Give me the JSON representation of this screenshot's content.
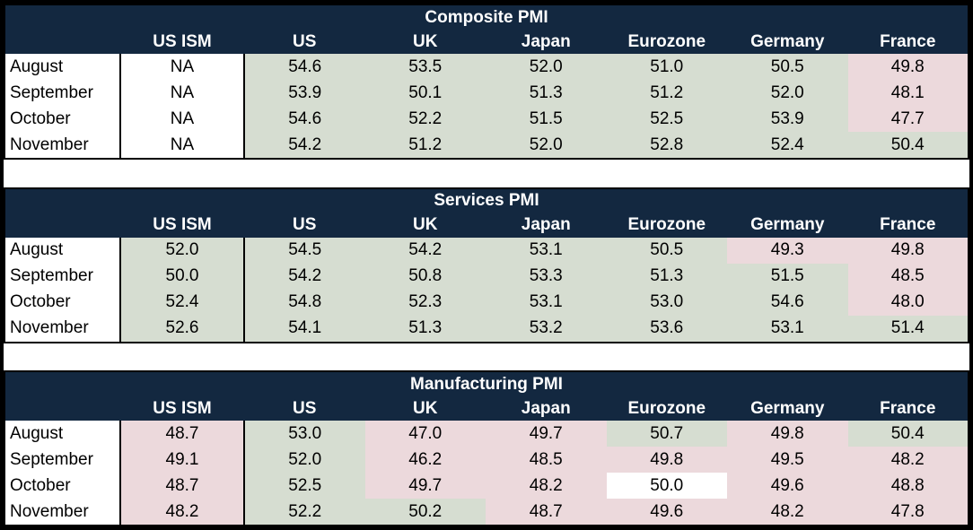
{
  "colors": {
    "header_bg": "#132840",
    "header_text": "#ffffff",
    "expansion_green": "#D6DDD1",
    "contraction_pink": "#ECD9DC",
    "neutral_white": "#ffffff",
    "data_text": "#000000",
    "frame": "#000000"
  },
  "chart_data": [
    {
      "type": "table",
      "title": "Composite PMI",
      "columns": [
        "",
        "US ISM",
        "US",
        "UK",
        "Japan",
        "Eurozone",
        "Germany",
        "France"
      ],
      "rows": [
        [
          "August",
          "NA",
          "54.6",
          "53.5",
          "52.0",
          "51.0",
          "50.5",
          "49.8"
        ],
        [
          "September",
          "NA",
          "53.9",
          "50.1",
          "51.3",
          "51.2",
          "52.0",
          "48.1"
        ],
        [
          "October",
          "NA",
          "54.6",
          "52.2",
          "51.5",
          "52.5",
          "53.9",
          "47.7"
        ],
        [
          "November",
          "NA",
          "54.2",
          "51.2",
          "52.0",
          "52.8",
          "52.4",
          "50.4"
        ]
      ],
      "cell_colors": [
        [
          "white",
          "green",
          "green",
          "green",
          "green",
          "green",
          "pink"
        ],
        [
          "white",
          "green",
          "green",
          "green",
          "green",
          "green",
          "pink"
        ],
        [
          "white",
          "green",
          "green",
          "green",
          "green",
          "green",
          "pink"
        ],
        [
          "white",
          "green",
          "green",
          "green",
          "green",
          "green",
          "green"
        ]
      ]
    },
    {
      "type": "table",
      "title": "Services PMI",
      "columns": [
        "",
        "US ISM",
        "US",
        "UK",
        "Japan",
        "Eurozone",
        "Germany",
        "France"
      ],
      "rows": [
        [
          "August",
          "52.0",
          "54.5",
          "54.2",
          "53.1",
          "50.5",
          "49.3",
          "49.8"
        ],
        [
          "September",
          "50.0",
          "54.2",
          "50.8",
          "53.3",
          "51.3",
          "51.5",
          "48.5"
        ],
        [
          "October",
          "52.4",
          "54.8",
          "52.3",
          "53.1",
          "53.0",
          "54.6",
          "48.0"
        ],
        [
          "November",
          "52.6",
          "54.1",
          "51.3",
          "53.2",
          "53.6",
          "53.1",
          "51.4"
        ]
      ],
      "cell_colors": [
        [
          "green",
          "green",
          "green",
          "green",
          "green",
          "pink",
          "pink"
        ],
        [
          "green",
          "green",
          "green",
          "green",
          "green",
          "green",
          "pink"
        ],
        [
          "green",
          "green",
          "green",
          "green",
          "green",
          "green",
          "pink"
        ],
        [
          "green",
          "green",
          "green",
          "green",
          "green",
          "green",
          "green"
        ]
      ]
    },
    {
      "type": "table",
      "title": "Manufacturing PMI",
      "columns": [
        "",
        "US ISM",
        "US",
        "UK",
        "Japan",
        "Eurozone",
        "Germany",
        "France"
      ],
      "rows": [
        [
          "August",
          "48.7",
          "53.0",
          "47.0",
          "49.7",
          "50.7",
          "49.8",
          "50.4"
        ],
        [
          "September",
          "49.1",
          "52.0",
          "46.2",
          "48.5",
          "49.8",
          "49.5",
          "48.2"
        ],
        [
          "October",
          "48.7",
          "52.5",
          "49.7",
          "48.2",
          "50.0",
          "49.6",
          "48.8"
        ],
        [
          "November",
          "48.2",
          "52.2",
          "50.2",
          "48.7",
          "49.6",
          "48.2",
          "47.8"
        ]
      ],
      "cell_colors": [
        [
          "pink",
          "green",
          "pink",
          "pink",
          "green",
          "pink",
          "green"
        ],
        [
          "pink",
          "green",
          "pink",
          "pink",
          "pink",
          "pink",
          "pink"
        ],
        [
          "pink",
          "green",
          "pink",
          "pink",
          "white",
          "pink",
          "pink"
        ],
        [
          "pink",
          "green",
          "green",
          "pink",
          "pink",
          "pink",
          "pink"
        ]
      ]
    }
  ]
}
